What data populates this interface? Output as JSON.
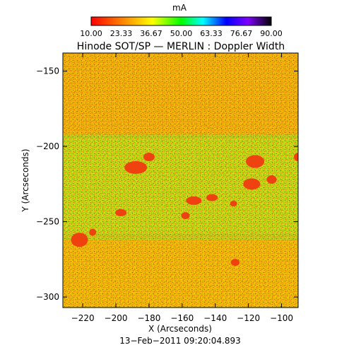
{
  "figure": {
    "colorbar_unit": "mA",
    "colorbar_ticks": [
      "10.00",
      "23.33",
      "36.67",
      "50.00",
      "63.33",
      "76.67",
      "90.00"
    ],
    "colorbar_range": [
      10,
      90
    ],
    "title": "Hinode SOT/SP — MERLIN : Doppler Width",
    "xlabel": "X (Arcseconds)",
    "ylabel": "Y (Arcseconds)",
    "x_ticks": [
      "−220",
      "−200",
      "−180",
      "−160",
      "−140",
      "−120",
      "−100"
    ],
    "y_ticks": [
      "−150",
      "−200",
      "−250",
      "−300"
    ],
    "timestamp": "13−Feb−2011 09:20:04.893"
  },
  "chart_data": {
    "type": "heatmap",
    "title": "Hinode SOT/SP — MERLIN : Doppler Width",
    "xlabel": "X (Arcseconds)",
    "ylabel": "Y (Arcseconds)",
    "x_ticks": [
      -220,
      -200,
      -180,
      -160,
      -140,
      -120,
      -100
    ],
    "y_ticks": [
      -150,
      -200,
      -250,
      -300
    ],
    "xlim": [
      -232,
      -90
    ],
    "ylim": [
      -307,
      -138
    ],
    "color_range": [
      10,
      90
    ],
    "color_unit": "mA",
    "colormap": [
      "#ff0000",
      "#ff7f00",
      "#ffff00",
      "#00ff00",
      "#00ffff",
      "#0000ff",
      "#7f00ff",
      "#000000"
    ]
  }
}
